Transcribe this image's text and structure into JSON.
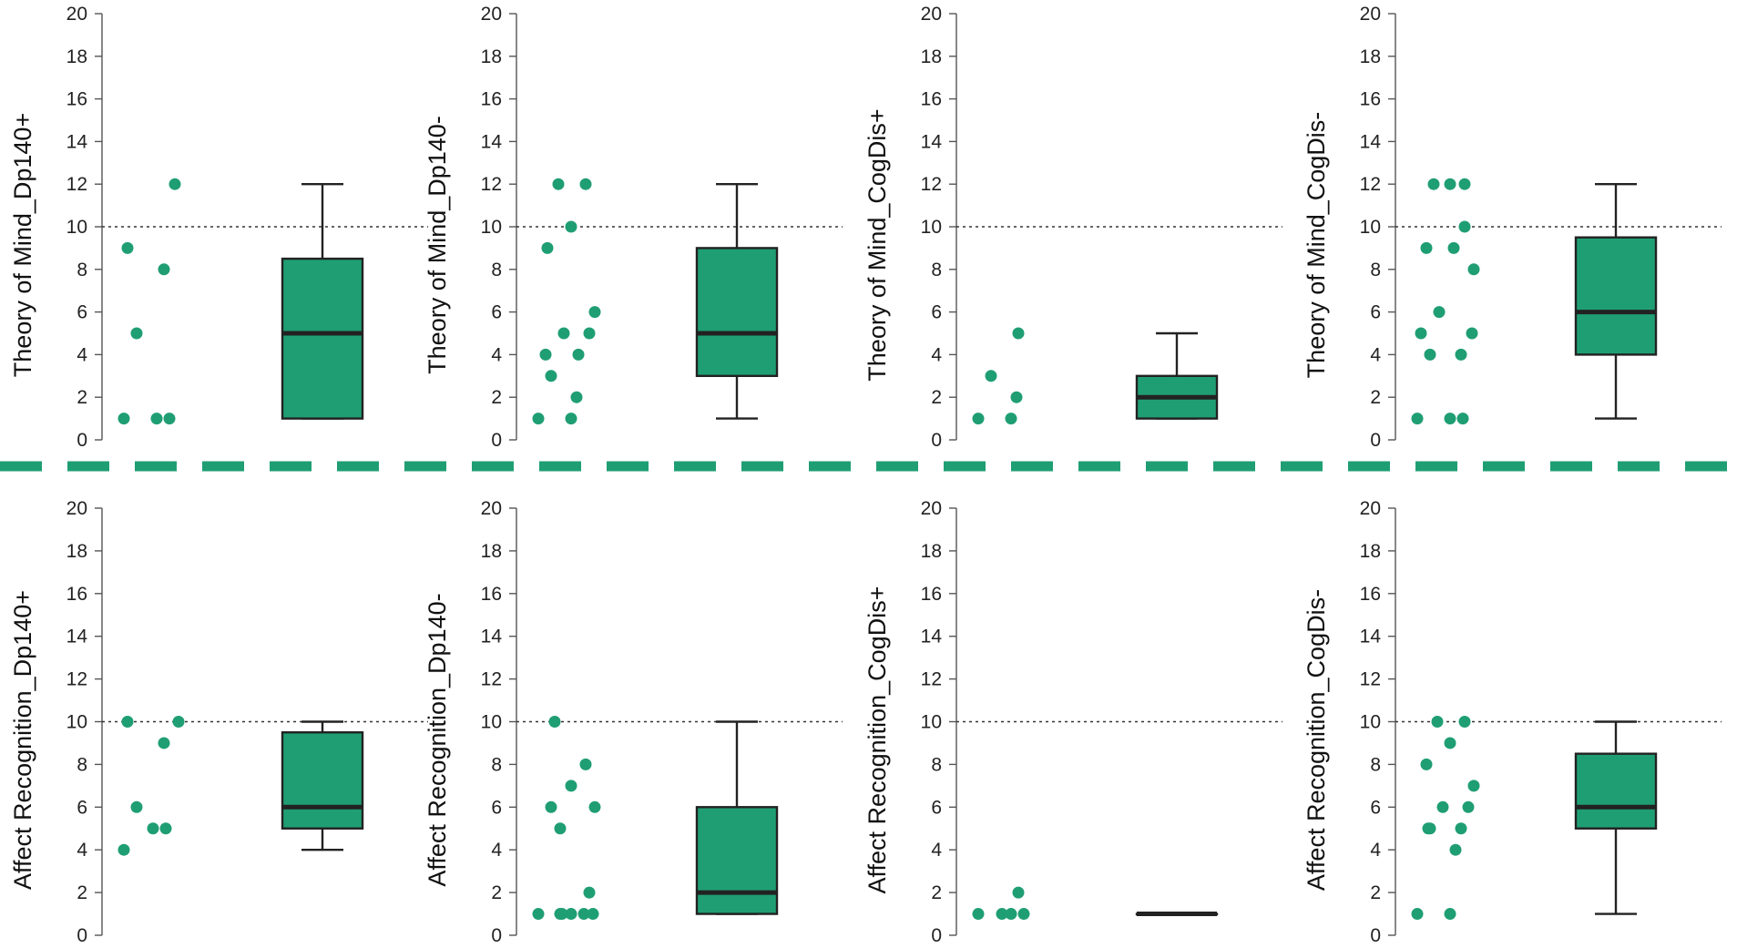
{
  "figure": {
    "accent_color": "#1f9e74",
    "box_fill": "#1f9e74",
    "line_color": "#222222",
    "reference_line_value": 10,
    "separator": "dashed-green-line"
  },
  "chart_data": [
    {
      "type": "box-dot",
      "ylabel": "Theory of Mind_Dp140+",
      "ylim": [
        0,
        20
      ],
      "yticks": [
        "0",
        "2",
        "4",
        "6",
        "8",
        "10",
        "12",
        "14",
        "16",
        "18",
        "20"
      ],
      "points": [
        1,
        1,
        1,
        5,
        8,
        9,
        12
      ],
      "box": {
        "min": 1,
        "q1": 1,
        "median": 5,
        "q3": 8.5,
        "max": 12
      }
    },
    {
      "type": "box-dot",
      "ylabel": "Theory of Mind_Dp140-",
      "ylim": [
        0,
        20
      ],
      "yticks": [
        "0",
        "2",
        "4",
        "6",
        "8",
        "10",
        "12",
        "14",
        "16",
        "18",
        "20"
      ],
      "points": [
        1,
        1,
        2,
        3,
        4,
        4,
        5,
        5,
        6,
        9,
        10,
        12,
        12
      ],
      "box": {
        "min": 1,
        "q1": 3,
        "median": 5,
        "q3": 9,
        "max": 12
      }
    },
    {
      "type": "box-dot",
      "ylabel": "Theory of Mind_CogDis+",
      "ylim": [
        0,
        20
      ],
      "yticks": [
        "0",
        "2",
        "4",
        "6",
        "8",
        "10",
        "12",
        "14",
        "16",
        "18",
        "20"
      ],
      "points": [
        1,
        1,
        2,
        3,
        5
      ],
      "box": {
        "min": 1,
        "q1": 1,
        "median": 2,
        "q3": 3,
        "max": 5
      }
    },
    {
      "type": "box-dot",
      "ylabel": "Theory of Mind_CogDis-",
      "ylim": [
        0,
        20
      ],
      "yticks": [
        "0",
        "2",
        "4",
        "6",
        "8",
        "10",
        "12",
        "14",
        "16",
        "18",
        "20"
      ],
      "points": [
        1,
        1,
        1,
        4,
        4,
        5,
        5,
        6,
        8,
        9,
        9,
        10,
        12,
        12,
        12
      ],
      "box": {
        "min": 1,
        "q1": 4,
        "median": 6,
        "q3": 9.5,
        "max": 12
      }
    },
    {
      "type": "box-dot",
      "ylabel": "Affect Recognition_Dp140+",
      "ylim": [
        0,
        20
      ],
      "yticks": [
        "0",
        "2",
        "4",
        "6",
        "8",
        "10",
        "12",
        "14",
        "16",
        "18",
        "20"
      ],
      "points": [
        4,
        5,
        5,
        6,
        9,
        10,
        10
      ],
      "box": {
        "min": 4,
        "q1": 5,
        "median": 6,
        "q3": 9.5,
        "max": 10
      }
    },
    {
      "type": "box-dot",
      "ylabel": "Affect Recognition_Dp140-",
      "ylim": [
        0,
        20
      ],
      "yticks": [
        "0",
        "2",
        "4",
        "6",
        "8",
        "10",
        "12",
        "14",
        "16",
        "18",
        "20"
      ],
      "points": [
        1,
        1,
        1,
        1,
        1,
        1,
        2,
        5,
        6,
        6,
        7,
        8,
        10
      ],
      "box": {
        "min": 1,
        "q1": 1,
        "median": 2,
        "q3": 6,
        "max": 10
      }
    },
    {
      "type": "box-dot",
      "ylabel": "Affect Recognition_CogDis+",
      "ylim": [
        0,
        20
      ],
      "yticks": [
        "0",
        "2",
        "4",
        "6",
        "8",
        "10",
        "12",
        "14",
        "16",
        "18",
        "20"
      ],
      "points": [
        1,
        1,
        1,
        1,
        2
      ],
      "box": {
        "min": 1,
        "q1": 1,
        "median": 1,
        "q3": 1,
        "max": 1
      }
    },
    {
      "type": "box-dot",
      "ylabel": "Affect Recognition_CogDis-",
      "ylim": [
        0,
        20
      ],
      "yticks": [
        "0",
        "2",
        "4",
        "6",
        "8",
        "10",
        "12",
        "14",
        "16",
        "18",
        "20"
      ],
      "points": [
        1,
        1,
        4,
        5,
        5,
        5,
        6,
        6,
        7,
        8,
        9,
        10,
        10
      ],
      "box": {
        "min": 1,
        "q1": 5,
        "median": 6,
        "q3": 8.5,
        "max": 10
      }
    }
  ]
}
